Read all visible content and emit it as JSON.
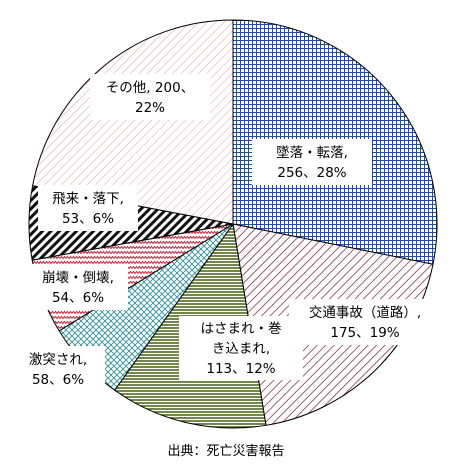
{
  "chart_data": {
    "type": "pie",
    "title": "",
    "source": "出典：死亡災害報告",
    "slices": [
      {
        "name": "墜落・転落",
        "value": 256,
        "percent": "28%",
        "label_lines": [
          "墜落・転落,",
          "256、28%"
        ],
        "fill": "#1f4e9c",
        "pattern": "grid"
      },
      {
        "name": "交通事故（道路）",
        "value": 175,
        "percent": "19%",
        "label_lines": [
          "交通事故（道路）,",
          "175、19%"
        ],
        "fill": "#7b1730",
        "pattern": "diag"
      },
      {
        "name": "はさまれ・巻き込まれ",
        "value": 113,
        "percent": "12%",
        "label_lines": [
          "はさまれ・巻",
          "き込まれ,",
          "113、12%"
        ],
        "fill": "#4e6b1c",
        "pattern": "hlines"
      },
      {
        "name": "激突され",
        "value": 58,
        "percent": "6%",
        "label_lines": [
          "激突され,",
          "58、6%"
        ],
        "fill": "#2f8f96",
        "pattern": "crosshatch"
      },
      {
        "name": "崩壊・倒壊",
        "value": 54,
        "percent": "6%",
        "label_lines": [
          "崩壊・倒壊,",
          "54、6%"
        ],
        "fill": "#c0243a",
        "pattern": "zigzag"
      },
      {
        "name": "飛来・落下",
        "value": 53,
        "percent": "6%",
        "label_lines": [
          "飛来・落下,",
          "53、6%"
        ],
        "fill": "#111111",
        "pattern": "bold-diag"
      },
      {
        "name": "その他",
        "value": 200,
        "percent": "22%",
        "label_lines": [
          "その他, 200、",
          "22%"
        ],
        "fill": "#d9a3ad",
        "pattern": "light-diag"
      }
    ]
  }
}
